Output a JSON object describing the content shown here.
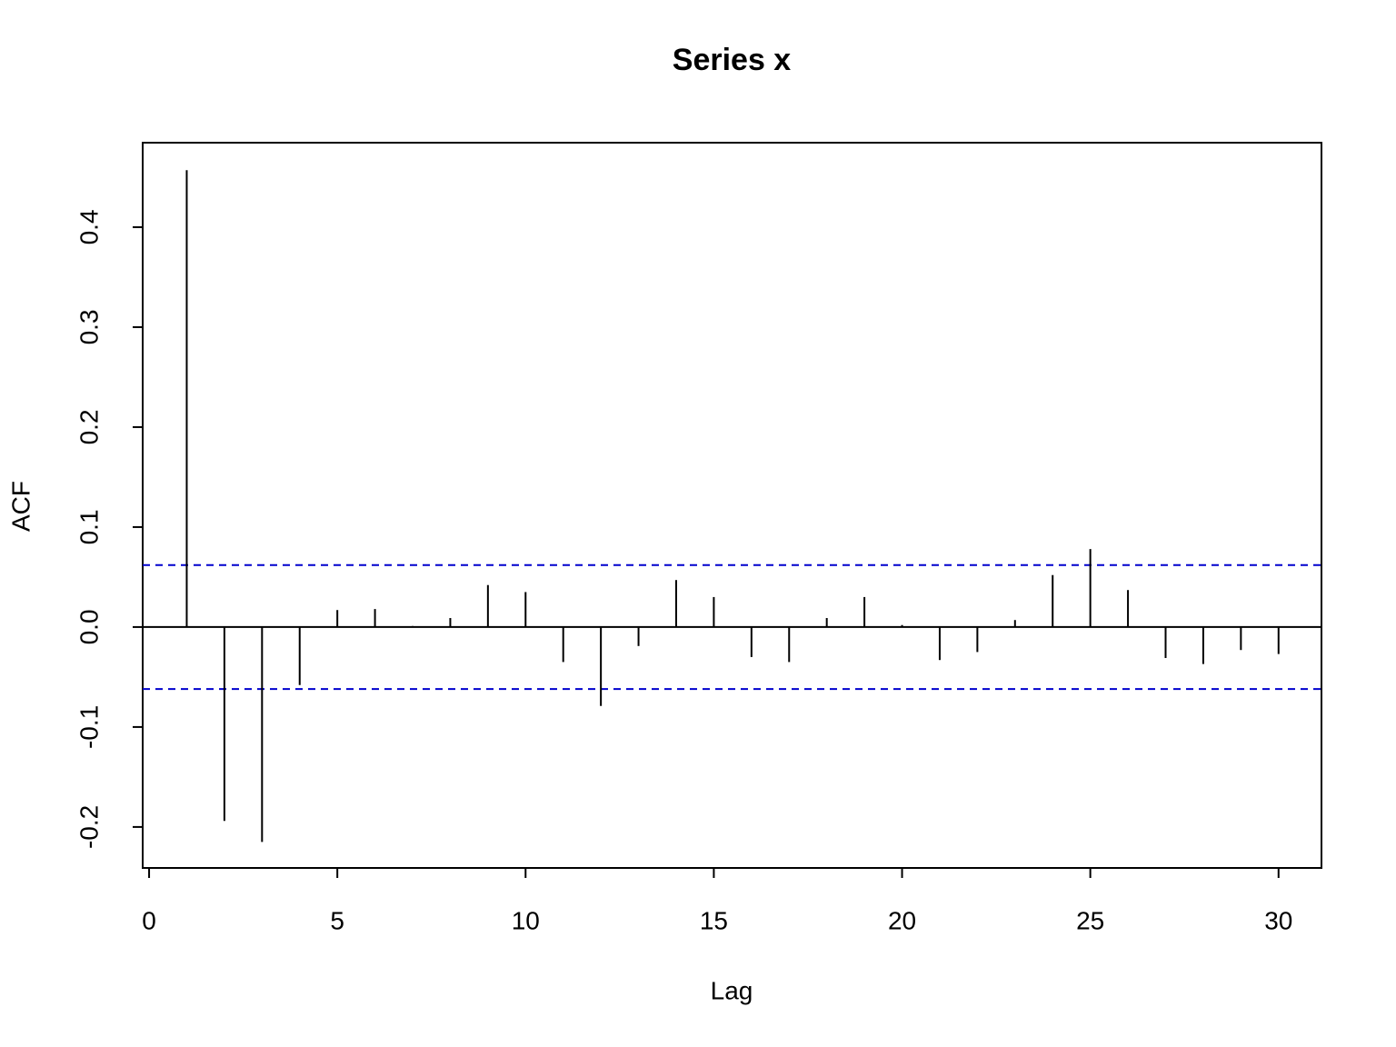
{
  "chart_data": {
    "type": "acf",
    "title": "Series  x",
    "xlabel": "Lag",
    "ylabel": "ACF",
    "x": [
      1,
      2,
      3,
      4,
      5,
      6,
      7,
      8,
      9,
      10,
      11,
      12,
      13,
      14,
      15,
      16,
      17,
      18,
      19,
      20,
      21,
      22,
      23,
      24,
      25,
      26,
      27,
      28,
      29,
      30
    ],
    "values": [
      0.457,
      -0.194,
      -0.215,
      -0.058,
      0.017,
      0.018,
      0.001,
      0.009,
      0.042,
      0.035,
      -0.035,
      -0.079,
      -0.019,
      0.047,
      0.03,
      -0.03,
      -0.035,
      0.009,
      0.03,
      0.002,
      -0.033,
      -0.025,
      0.007,
      0.052,
      0.078,
      0.037,
      -0.031,
      -0.037,
      -0.023,
      -0.027
    ],
    "color": "#000000",
    "ci": 0.062,
    "ci_color": "#0000cd",
    "xlim": [
      -0.17,
      31.14
    ],
    "ylim": [
      -0.241,
      0.4845
    ],
    "xticks": [
      0,
      5,
      10,
      15,
      20,
      25,
      30
    ],
    "yticks": [
      -0.2,
      -0.1,
      {
        "value": 0,
        "label": "0.0"
      },
      0.1,
      0.2,
      0.3,
      0.4
    ]
  }
}
